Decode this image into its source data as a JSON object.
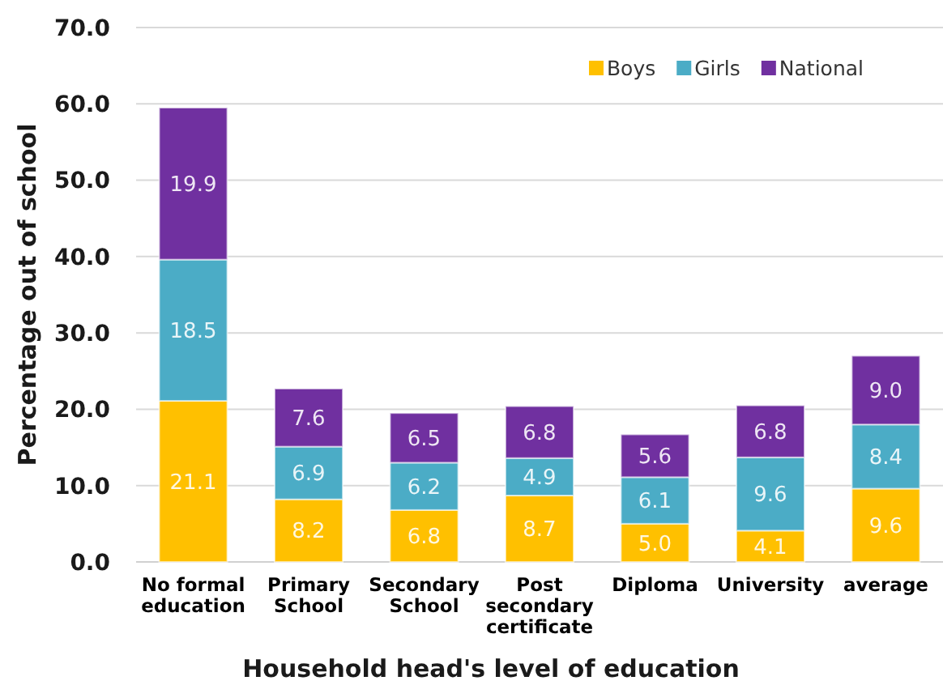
{
  "chart_data": {
    "type": "bar",
    "stacked": true,
    "categories": [
      "No formal education",
      "Primary School",
      "Secondary School",
      "Post secondary certificate",
      "Diploma",
      "University",
      "average"
    ],
    "series": [
      {
        "name": "Boys",
        "color": "#ffc000",
        "values": [
          21.1,
          8.2,
          6.8,
          8.7,
          5.0,
          4.1,
          9.6
        ],
        "value_labels": [
          "21.1",
          "8.2",
          "6.8",
          "8.7",
          "5.0",
          "4.1",
          "9.6"
        ]
      },
      {
        "name": "Girls",
        "color": "#4bacc6",
        "values": [
          18.5,
          6.9,
          6.2,
          4.9,
          6.1,
          9.6,
          8.4
        ],
        "value_labels": [
          "18.5",
          "6.9",
          "6.2",
          "4.9",
          "6.1",
          "9.6",
          "8.4"
        ]
      },
      {
        "name": "National",
        "color": "#7030a0",
        "values": [
          19.9,
          7.6,
          6.5,
          6.8,
          5.6,
          6.8,
          9.0
        ],
        "value_labels": [
          "19.9",
          "7.6",
          "6.5",
          "6.8",
          "5.6",
          "6.8",
          "9.0"
        ]
      }
    ],
    "xlabel": "Household head's level of education",
    "ylabel": "Percentage out of school",
    "ylim": [
      0,
      70
    ],
    "yticks": [
      {
        "value": 0,
        "label": "0.0"
      },
      {
        "value": 10,
        "label": "10.0"
      },
      {
        "value": 20,
        "label": "20.0"
      },
      {
        "value": 30,
        "label": "30.0"
      },
      {
        "value": 40,
        "label": "40.0"
      },
      {
        "value": 50,
        "label": "50.0"
      },
      {
        "value": 60,
        "label": "60.0"
      },
      {
        "value": 70,
        "label": "70.0"
      }
    ],
    "grid": "y",
    "legend": "top right"
  }
}
